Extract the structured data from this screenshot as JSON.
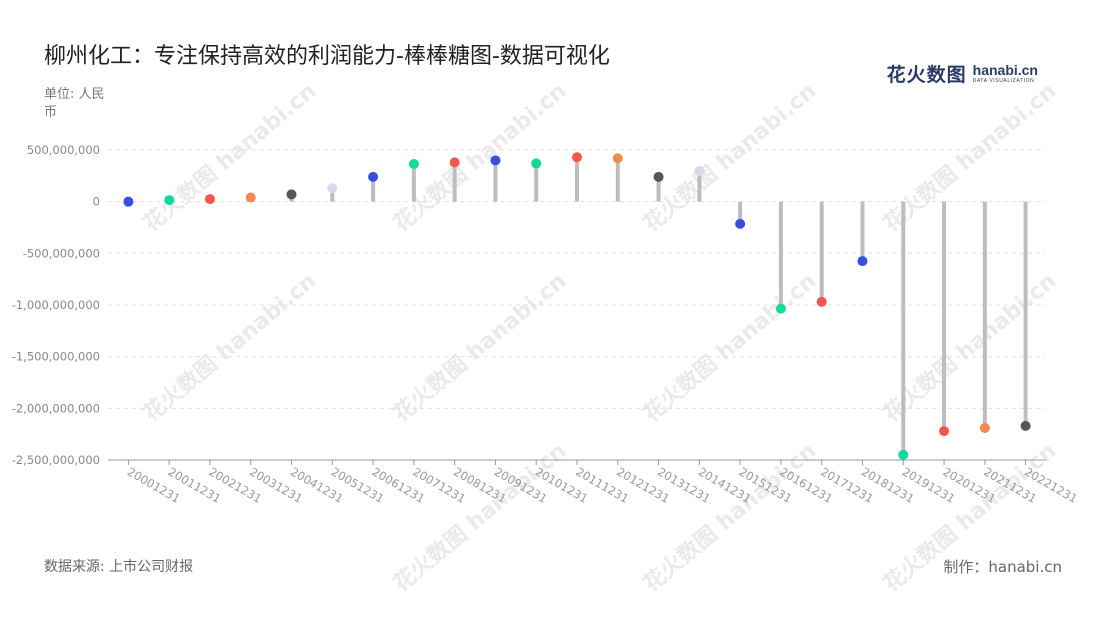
{
  "title": "柳州化工：专注保持高效的利润能力-棒棒糖图-数据可视化",
  "unit_label": "单位: 人民币",
  "brand": {
    "cn": "花火数图",
    "en": "hanabi.cn",
    "sub": "DATA VISUALIZATION"
  },
  "source_label": "数据来源: 上市公司财报",
  "credit_label": "制作：hanabi.cn",
  "watermark_text": "花火数图 hanabi.cn",
  "chart_data": {
    "type": "lollipop",
    "title": "柳州化工：专注保持高效的利润能力-棒棒糖图-数据可视化",
    "ylabel": "单位: 人民币",
    "ylim": [
      -2500000000,
      500000000
    ],
    "yticks": [
      500000000,
      0,
      -500000000,
      -1000000000,
      -1500000000,
      -2000000000,
      -2500000000
    ],
    "ytick_labels": [
      "500,000,000",
      "0",
      "-500,000,000",
      "-1,000,000,000",
      "-1,500,000,000",
      "-2,000,000,000",
      "-2,500,000,000"
    ],
    "grid": true,
    "categories": [
      "20001231",
      "20011231",
      "20021231",
      "20031231",
      "20041231",
      "20051231",
      "20061231",
      "20071231",
      "20081231",
      "20091231",
      "20101231",
      "20111231",
      "20121231",
      "20131231",
      "20141231",
      "20151231",
      "20161231",
      "20171231",
      "20181231",
      "20191231",
      "20201231",
      "20211231",
      "20221231"
    ],
    "values": [
      0,
      15000000,
      25000000,
      40000000,
      70000000,
      130000000,
      240000000,
      365000000,
      380000000,
      400000000,
      370000000,
      430000000,
      420000000,
      240000000,
      295000000,
      -215000000,
      -1035000000,
      -970000000,
      -575000000,
      -2450000000,
      -2220000000,
      -2190000000,
      -2170000000
    ],
    "colors": [
      "#3a4de0",
      "#13d99b",
      "#f3554f",
      "#f58a4e",
      "#555560",
      "#d5dbe6",
      "#3a4de0",
      "#13d99b",
      "#f3554f",
      "#3a4de0",
      "#13d99b",
      "#f3554f",
      "#f58a4e",
      "#555560",
      "#d5dbe6",
      "#3a4de0",
      "#13d99b",
      "#f3554f",
      "#3a4de0",
      "#13d99b",
      "#f3554f",
      "#f58a4e",
      "#555560"
    ],
    "stem_color": "#bdbdbd",
    "grid_color": "#e0e0e0"
  }
}
